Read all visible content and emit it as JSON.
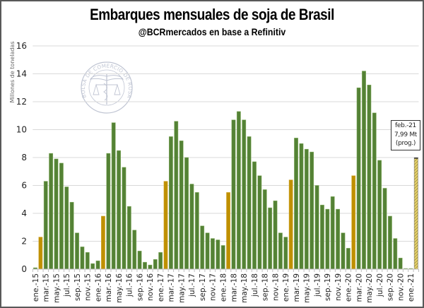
{
  "chart_data": {
    "type": "bar",
    "title": "Embarques mensuales de soja de Brasil",
    "subtitle": "@BCRmercados en base a Refinitiv",
    "xlabel": "",
    "ylabel": "Millones de toneladas",
    "ylim": [
      0,
      16
    ],
    "yticks": [
      0,
      2,
      4,
      6,
      8,
      10,
      12,
      14,
      16
    ],
    "grid": true,
    "watermark": "BOLSA DE COMERCIO DE ROSARIO",
    "colors": {
      "regular": "#548235",
      "february": "#bf9000",
      "projection": "#d9c24a",
      "grid": "#d9d9d9"
    },
    "tick_labels": [
      "ene.-15",
      "mar.-15",
      "may.-15",
      "jul.-15",
      "sep.-15",
      "nov.-15",
      "ene.-16",
      "mar.-16",
      "may.-16",
      "jul.-16",
      "sep.-16",
      "nov.-16",
      "ene.-17",
      "mar.-17",
      "may.-17",
      "jul.-17",
      "sep.-17",
      "nov.-17",
      "ene.-18",
      "mar.-18",
      "may.-18",
      "jul.-18",
      "sep.-18",
      "nov.-18",
      "ene.-19",
      "mar.-19",
      "may.-19",
      "jul.-19",
      "sep.-19",
      "nov.-19",
      "ene.-20",
      "mar.-20",
      "may.-20",
      "jul.-20",
      "sep.-20",
      "nov.-20",
      "ene.-21"
    ],
    "categories": [
      "ene.-15",
      "feb.-15",
      "mar.-15",
      "abr.-15",
      "may.-15",
      "jun.-15",
      "jul.-15",
      "ago.-15",
      "sep.-15",
      "oct.-15",
      "nov.-15",
      "dic.-15",
      "ene.-16",
      "feb.-16",
      "mar.-16",
      "abr.-16",
      "may.-16",
      "jun.-16",
      "jul.-16",
      "ago.-16",
      "sep.-16",
      "oct.-16",
      "nov.-16",
      "dic.-16",
      "ene.-17",
      "feb.-17",
      "mar.-17",
      "abr.-17",
      "may.-17",
      "jun.-17",
      "jul.-17",
      "ago.-17",
      "sep.-17",
      "oct.-17",
      "nov.-17",
      "dic.-17",
      "ene.-18",
      "feb.-18",
      "mar.-18",
      "abr.-18",
      "may.-18",
      "jun.-18",
      "jul.-18",
      "ago.-18",
      "sep.-18",
      "oct.-18",
      "nov.-18",
      "dic.-18",
      "ene.-19",
      "feb.-19",
      "mar.-19",
      "abr.-19",
      "may.-19",
      "jun.-19",
      "jul.-19",
      "ago.-19",
      "sep.-19",
      "oct.-19",
      "nov.-19",
      "dic.-19",
      "ene.-20",
      "feb.-20",
      "mar.-20",
      "abr.-20",
      "may.-20",
      "jun.-20",
      "jul.-20",
      "ago.-20",
      "sep.-20",
      "oct.-20",
      "nov.-20",
      "dic.-20",
      "ene.-21",
      "feb.-21"
    ],
    "values": [
      0.1,
      2.3,
      6.3,
      8.3,
      7.9,
      7.6,
      5.9,
      4.8,
      2.6,
      1.6,
      1.2,
      0.4,
      0.6,
      3.8,
      8.3,
      10.5,
      8.5,
      7.3,
      4.5,
      2.8,
      1.3,
      0.5,
      0.3,
      0.7,
      1.2,
      6.3,
      9.5,
      10.6,
      9.2,
      8.0,
      6.1,
      5.5,
      3.1,
      2.6,
      2.2,
      2.1,
      1.7,
      5.5,
      10.7,
      11.3,
      10.7,
      9.5,
      7.7,
      6.7,
      5.7,
      4.4,
      4.9,
      2.6,
      2.3,
      6.4,
      9.4,
      9.0,
      8.6,
      8.4,
      6.0,
      4.6,
      4.3,
      5.2,
      4.3,
      2.6,
      1.5,
      6.7,
      13.0,
      14.2,
      13.2,
      11.2,
      7.8,
      5.8,
      3.8,
      2.2,
      0.8,
      0.05,
      0.05,
      7.99
    ],
    "bar_type": [
      "regular",
      "february",
      "regular",
      "regular",
      "regular",
      "regular",
      "regular",
      "regular",
      "regular",
      "regular",
      "regular",
      "regular",
      "regular",
      "february",
      "regular",
      "regular",
      "regular",
      "regular",
      "regular",
      "regular",
      "regular",
      "regular",
      "regular",
      "regular",
      "regular",
      "february",
      "regular",
      "regular",
      "regular",
      "regular",
      "regular",
      "regular",
      "regular",
      "regular",
      "regular",
      "regular",
      "regular",
      "february",
      "regular",
      "regular",
      "regular",
      "regular",
      "regular",
      "regular",
      "regular",
      "regular",
      "regular",
      "regular",
      "regular",
      "february",
      "regular",
      "regular",
      "regular",
      "regular",
      "regular",
      "regular",
      "regular",
      "regular",
      "regular",
      "regular",
      "regular",
      "february",
      "regular",
      "regular",
      "regular",
      "regular",
      "regular",
      "regular",
      "regular",
      "regular",
      "regular",
      "regular",
      "regular",
      "projection"
    ],
    "annotation": {
      "category": "feb.-21",
      "lines": [
        "feb.-21",
        "7,99 Mt",
        "(prog.)"
      ]
    }
  }
}
